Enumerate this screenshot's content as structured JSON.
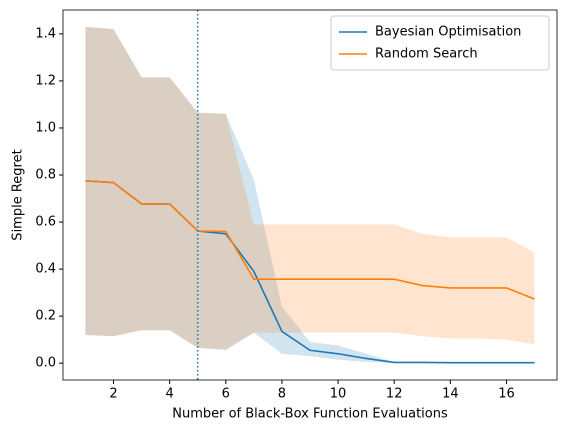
{
  "chart_data": {
    "type": "line",
    "xlabel": "Number of Black-Box Function Evaluations",
    "ylabel": "Simple Regret",
    "x": [
      1,
      2,
      3,
      4,
      5,
      6,
      7,
      8,
      9,
      10,
      11,
      12,
      13,
      14,
      15,
      16,
      17
    ],
    "series": [
      {
        "name": "Bayesian Optimisation",
        "color": "#1f77b4",
        "values": [
          0.775,
          0.768,
          0.677,
          0.677,
          0.562,
          0.55,
          0.39,
          0.135,
          0.055,
          0.04,
          0.02,
          0.003,
          0.003,
          0.002,
          0.002,
          0.002,
          0.002
        ],
        "upper": [
          1.43,
          1.42,
          1.215,
          1.215,
          1.065,
          1.06,
          0.78,
          0.24,
          0.09,
          0.075,
          0.04,
          0.005,
          0.005,
          0.004,
          0.004,
          0.004,
          0.004
        ],
        "lower": [
          0.12,
          0.115,
          0.14,
          0.14,
          0.065,
          0.055,
          0.13,
          0.04,
          0.03,
          0.015,
          0.005,
          0.001,
          0.001,
          0,
          0,
          0,
          0
        ]
      },
      {
        "name": "Random Search",
        "color": "#ff7f0e",
        "values": [
          0.775,
          0.768,
          0.677,
          0.677,
          0.562,
          0.56,
          0.357,
          0.357,
          0.357,
          0.357,
          0.357,
          0.357,
          0.33,
          0.32,
          0.32,
          0.32,
          0.273
        ],
        "upper": [
          1.43,
          1.42,
          1.215,
          1.215,
          1.065,
          1.06,
          0.59,
          0.59,
          0.59,
          0.59,
          0.59,
          0.59,
          0.55,
          0.535,
          0.535,
          0.535,
          0.47
        ],
        "lower": [
          0.12,
          0.115,
          0.14,
          0.14,
          0.065,
          0.06,
          0.13,
          0.13,
          0.13,
          0.13,
          0.13,
          0.13,
          0.115,
          0.105,
          0.105,
          0.1,
          0.08
        ]
      }
    ],
    "vline": {
      "x": 5,
      "color": "#1f77b4",
      "style": "dotted"
    },
    "xlim": [
      0.2,
      17.8
    ],
    "xticks": [
      2,
      4,
      6,
      8,
      10,
      12,
      14,
      16
    ],
    "ylim": [
      -0.0715,
      1.5015
    ],
    "yticks": [
      {
        "value": 0,
        "label": "0.0"
      },
      0.2,
      0.4,
      0.6,
      0.8,
      {
        "value": 1,
        "label": "1.0"
      },
      1.2,
      1.4
    ],
    "band_opacity": 0.2,
    "legend": "upper right"
  }
}
